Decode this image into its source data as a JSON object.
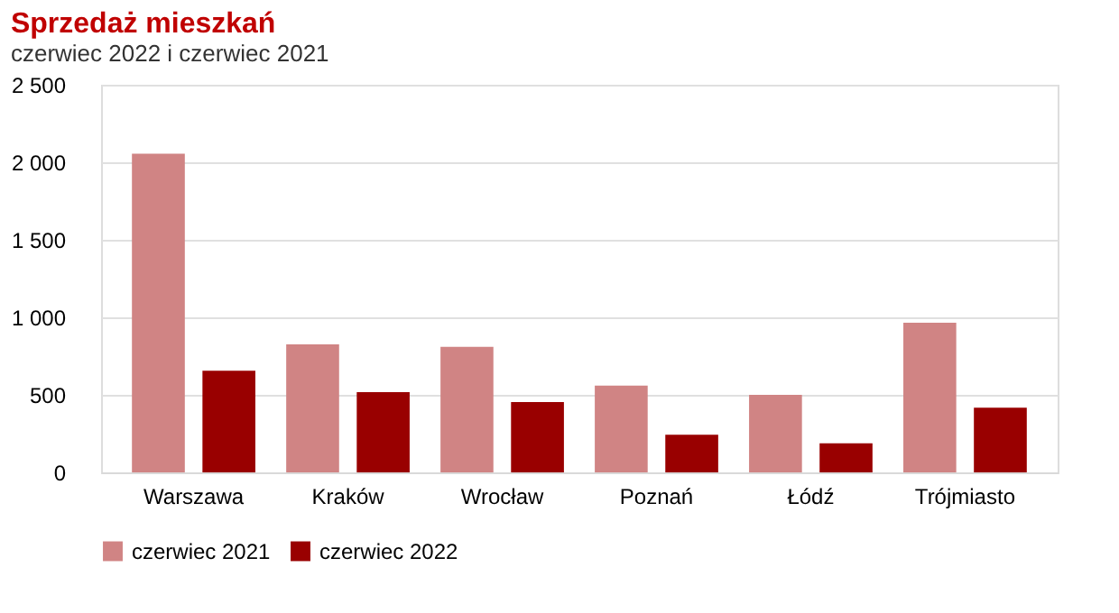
{
  "chart_data": {
    "type": "bar",
    "title": "Sprzedaż mieszkań",
    "subtitle": "czerwiec 2022 i czerwiec 2021",
    "categories": [
      "Warszawa",
      "Kraków",
      "Wrocław",
      "Poznań",
      "Łódź",
      "Trójmiasto"
    ],
    "series": [
      {
        "name": "czerwiec 2021",
        "color": "#d08484",
        "values": [
          2055,
          825,
          810,
          560,
          500,
          965
        ]
      },
      {
        "name": "czerwiec 2022",
        "color": "#990000",
        "values": [
          655,
          517,
          453,
          243,
          188,
          417
        ]
      }
    ],
    "ylim": [
      0,
      2500
    ],
    "yticks": [
      0,
      500,
      {
        "value": 1000,
        "label": "1 000"
      },
      {
        "value": 1500,
        "label": "1 500"
      },
      {
        "value": 2000,
        "label": "2 000"
      },
      {
        "value": 2500,
        "label": "2 500"
      }
    ],
    "grid": "y",
    "legend": "bottom"
  }
}
